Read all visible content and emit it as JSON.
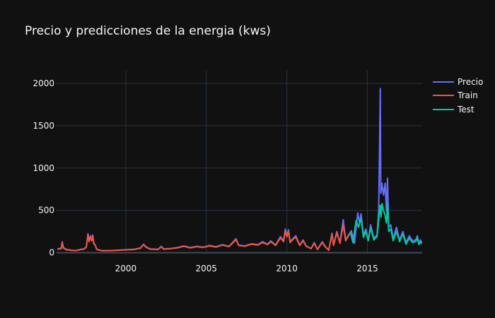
{
  "title": "Precio y predicciones de la energia (kws)",
  "colors": {
    "background": "#111111",
    "grid": "#283442",
    "text": "#f2f5fa",
    "zeroline": "#3f4a55"
  },
  "legend": {
    "position": "right"
  },
  "chart_data": {
    "type": "line",
    "title": "Precio y predicciones de la energia (kws)",
    "xlabel": "",
    "ylabel": "",
    "xlim": [
      1995.7,
      2018.4
    ],
    "ylim": [
      -20,
      2150
    ],
    "xticks": [
      2000,
      2005,
      2010,
      2015
    ],
    "yticks": [
      0,
      500,
      1000,
      1500,
      2000
    ],
    "grid": true,
    "series": [
      {
        "name": "Precio",
        "color": "#636efa",
        "points": [
          [
            1995.75,
            45
          ],
          [
            1995.9,
            50
          ],
          [
            1996.0,
            55
          ],
          [
            1996.05,
            130
          ],
          [
            1996.12,
            60
          ],
          [
            1996.3,
            40
          ],
          [
            1996.6,
            30
          ],
          [
            1996.9,
            25
          ],
          [
            1997.2,
            40
          ],
          [
            1997.4,
            45
          ],
          [
            1997.55,
            70
          ],
          [
            1997.65,
            225
          ],
          [
            1997.72,
            140
          ],
          [
            1997.8,
            200
          ],
          [
            1997.88,
            150
          ],
          [
            1997.95,
            210
          ],
          [
            1998.0,
            120
          ],
          [
            1998.1,
            90
          ],
          [
            1998.2,
            40
          ],
          [
            1998.5,
            25
          ],
          [
            1999.0,
            25
          ],
          [
            1999.5,
            30
          ],
          [
            2000.0,
            35
          ],
          [
            2000.5,
            40
          ],
          [
            2000.9,
            55
          ],
          [
            2001.1,
            100
          ],
          [
            2001.25,
            70
          ],
          [
            2001.5,
            45
          ],
          [
            2002.0,
            40
          ],
          [
            2002.2,
            75
          ],
          [
            2002.35,
            45
          ],
          [
            2002.8,
            50
          ],
          [
            2003.2,
            60
          ],
          [
            2003.6,
            80
          ],
          [
            2004.0,
            60
          ],
          [
            2004.4,
            75
          ],
          [
            2004.8,
            65
          ],
          [
            2005.2,
            85
          ],
          [
            2005.6,
            70
          ],
          [
            2006.0,
            95
          ],
          [
            2006.4,
            75
          ],
          [
            2006.85,
            165
          ],
          [
            2007.0,
            90
          ],
          [
            2007.4,
            80
          ],
          [
            2007.8,
            105
          ],
          [
            2008.2,
            95
          ],
          [
            2008.5,
            130
          ],
          [
            2008.8,
            100
          ],
          [
            2009.0,
            140
          ],
          [
            2009.3,
            90
          ],
          [
            2009.6,
            190
          ],
          [
            2009.8,
            140
          ],
          [
            2009.9,
            280
          ],
          [
            2010.0,
            200
          ],
          [
            2010.1,
            270
          ],
          [
            2010.2,
            130
          ],
          [
            2010.4,
            170
          ],
          [
            2010.55,
            200
          ],
          [
            2010.8,
            90
          ],
          [
            2011.0,
            150
          ],
          [
            2011.2,
            80
          ],
          [
            2011.5,
            50
          ],
          [
            2011.7,
            120
          ],
          [
            2011.9,
            40
          ],
          [
            2012.2,
            130
          ],
          [
            2012.4,
            70
          ],
          [
            2012.6,
            30
          ],
          [
            2012.8,
            230
          ],
          [
            2012.9,
            90
          ],
          [
            2013.1,
            250
          ],
          [
            2013.3,
            120
          ],
          [
            2013.5,
            390
          ],
          [
            2013.65,
            150
          ],
          [
            2013.8,
            200
          ],
          [
            2014.0,
            260
          ],
          [
            2014.2,
            110
          ],
          [
            2014.4,
            470
          ],
          [
            2014.5,
            350
          ],
          [
            2014.6,
            460
          ],
          [
            2014.75,
            210
          ],
          [
            2014.9,
            280
          ],
          [
            2015.05,
            150
          ],
          [
            2015.2,
            330
          ],
          [
            2015.4,
            170
          ],
          [
            2015.6,
            210
          ],
          [
            2015.7,
            500
          ],
          [
            2015.75,
            1170
          ],
          [
            2015.8,
            1940
          ],
          [
            2015.83,
            700
          ],
          [
            2015.9,
            820
          ],
          [
            2016.0,
            680
          ],
          [
            2016.1,
            820
          ],
          [
            2016.18,
            500
          ],
          [
            2016.25,
            880
          ],
          [
            2016.32,
            300
          ],
          [
            2016.45,
            330
          ],
          [
            2016.6,
            160
          ],
          [
            2016.8,
            300
          ],
          [
            2017.0,
            150
          ],
          [
            2017.2,
            250
          ],
          [
            2017.4,
            120
          ],
          [
            2017.6,
            200
          ],
          [
            2017.8,
            140
          ],
          [
            2018.0,
            150
          ],
          [
            2018.1,
            200
          ],
          [
            2018.2,
            110
          ],
          [
            2018.3,
            150
          ],
          [
            2018.38,
            120
          ]
        ]
      },
      {
        "name": "Train",
        "color": "#ef553b",
        "points": [
          [
            1995.75,
            40
          ],
          [
            1995.9,
            45
          ],
          [
            1996.0,
            50
          ],
          [
            1996.05,
            120
          ],
          [
            1996.12,
            55
          ],
          [
            1996.3,
            35
          ],
          [
            1996.6,
            28
          ],
          [
            1996.9,
            24
          ],
          [
            1997.2,
            38
          ],
          [
            1997.4,
            43
          ],
          [
            1997.55,
            65
          ],
          [
            1997.65,
            210
          ],
          [
            1997.72,
            130
          ],
          [
            1997.8,
            185
          ],
          [
            1997.88,
            140
          ],
          [
            1997.95,
            200
          ],
          [
            1998.0,
            110
          ],
          [
            1998.1,
            85
          ],
          [
            1998.2,
            38
          ],
          [
            1998.5,
            24
          ],
          [
            1999.0,
            24
          ],
          [
            1999.5,
            28
          ],
          [
            2000.0,
            33
          ],
          [
            2000.5,
            38
          ],
          [
            2000.9,
            52
          ],
          [
            2001.1,
            95
          ],
          [
            2001.25,
            65
          ],
          [
            2001.5,
            42
          ],
          [
            2002.0,
            38
          ],
          [
            2002.2,
            70
          ],
          [
            2002.35,
            42
          ],
          [
            2002.8,
            48
          ],
          [
            2003.2,
            57
          ],
          [
            2003.6,
            76
          ],
          [
            2004.0,
            57
          ],
          [
            2004.4,
            72
          ],
          [
            2004.8,
            62
          ],
          [
            2005.2,
            80
          ],
          [
            2005.6,
            66
          ],
          [
            2006.0,
            90
          ],
          [
            2006.4,
            72
          ],
          [
            2006.85,
            155
          ],
          [
            2007.0,
            85
          ],
          [
            2007.4,
            76
          ],
          [
            2007.8,
            100
          ],
          [
            2008.2,
            90
          ],
          [
            2008.5,
            120
          ],
          [
            2008.8,
            95
          ],
          [
            2009.0,
            130
          ],
          [
            2009.3,
            85
          ],
          [
            2009.6,
            175
          ],
          [
            2009.8,
            130
          ],
          [
            2009.9,
            255
          ],
          [
            2010.0,
            185
          ],
          [
            2010.1,
            250
          ],
          [
            2010.2,
            120
          ],
          [
            2010.4,
            160
          ],
          [
            2010.55,
            185
          ],
          [
            2010.8,
            85
          ],
          [
            2011.0,
            140
          ],
          [
            2011.2,
            75
          ],
          [
            2011.5,
            48
          ],
          [
            2011.7,
            110
          ],
          [
            2011.9,
            38
          ],
          [
            2012.2,
            120
          ],
          [
            2012.4,
            65
          ],
          [
            2012.6,
            28
          ],
          [
            2012.8,
            215
          ],
          [
            2012.9,
            85
          ],
          [
            2013.1,
            235
          ],
          [
            2013.3,
            110
          ],
          [
            2013.5,
            330
          ],
          [
            2013.65,
            140
          ],
          [
            2013.8,
            190
          ],
          [
            2013.95,
            240
          ]
        ]
      },
      {
        "name": "Test",
        "color": "#00cc96",
        "points": [
          [
            2013.95,
            240
          ],
          [
            2014.1,
            120
          ],
          [
            2014.3,
            380
          ],
          [
            2014.45,
            300
          ],
          [
            2014.6,
            410
          ],
          [
            2014.75,
            180
          ],
          [
            2014.9,
            250
          ],
          [
            2015.05,
            140
          ],
          [
            2015.2,
            290
          ],
          [
            2015.4,
            150
          ],
          [
            2015.6,
            190
          ],
          [
            2015.7,
            380
          ],
          [
            2015.75,
            480
          ],
          [
            2015.8,
            560
          ],
          [
            2015.85,
            420
          ],
          [
            2015.9,
            580
          ],
          [
            2016.0,
            500
          ],
          [
            2016.1,
            440
          ],
          [
            2016.18,
            350
          ],
          [
            2016.25,
            580
          ],
          [
            2016.32,
            250
          ],
          [
            2016.45,
            280
          ],
          [
            2016.6,
            140
          ],
          [
            2016.8,
            250
          ],
          [
            2017.0,
            130
          ],
          [
            2017.2,
            220
          ],
          [
            2017.4,
            100
          ],
          [
            2017.6,
            170
          ],
          [
            2017.8,
            120
          ],
          [
            2018.0,
            130
          ],
          [
            2018.1,
            170
          ],
          [
            2018.2,
            95
          ],
          [
            2018.3,
            130
          ],
          [
            2018.38,
            105
          ]
        ]
      }
    ]
  }
}
